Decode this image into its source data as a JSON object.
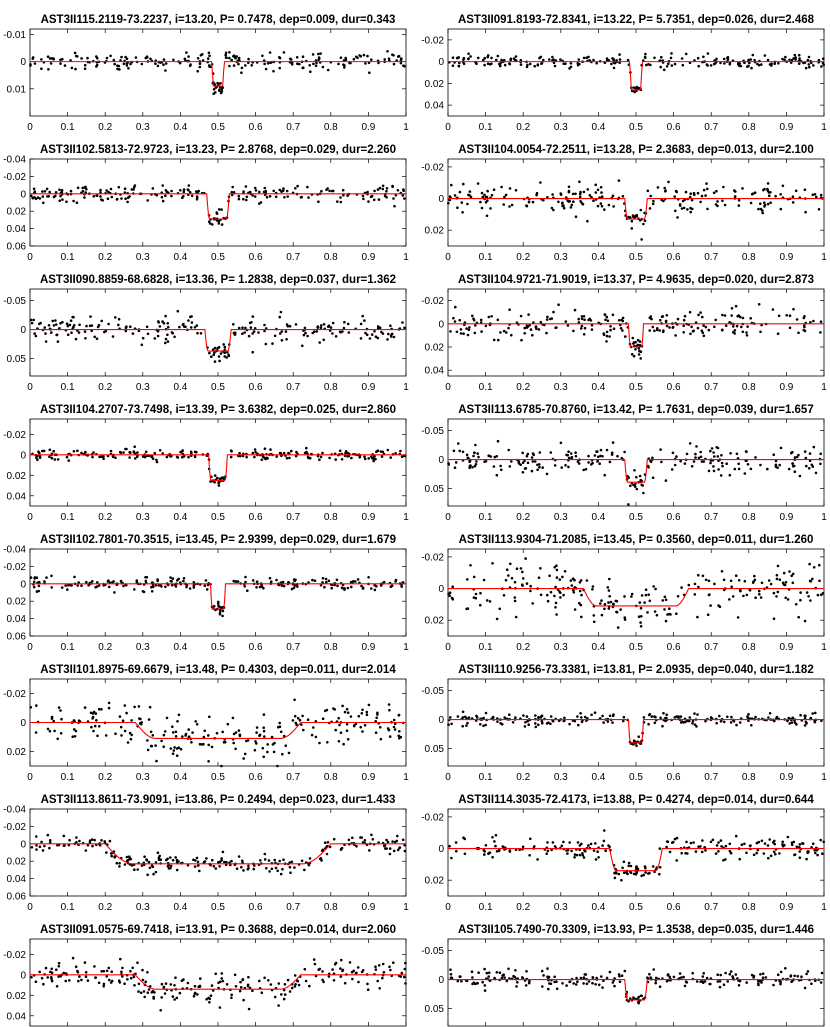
{
  "figure": {
    "x_ticks": [
      "0",
      "0.1",
      "0.2",
      "0.3",
      "0.4",
      "0.5",
      "0.6",
      "0.7",
      "0.8",
      "0.9",
      "1"
    ],
    "colors": {
      "model": "#ff0000",
      "points": "#000000"
    }
  },
  "chart_data": [
    {
      "type": "scatter",
      "title": "AST3II115.2119-73.2237, i=13.20, P= 0.7478, dep=0.009, dur=0.343",
      "xlim": [
        0,
        1
      ],
      "ylim": [
        0.02,
        -0.012
      ],
      "yticks": [
        "-0.01",
        "0",
        "0.01"
      ],
      "ytick_values": [
        -0.01,
        0,
        0.01
      ],
      "depth": 0.009,
      "transit_center": 0.5,
      "transit_width": 0.016,
      "noise": 0.0016,
      "seed": 11
    },
    {
      "type": "scatter",
      "title": "AST3II091.8193-72.8341, i=13.22, P= 5.7351, dep=0.026, dur=2.468",
      "xlim": [
        0,
        1
      ],
      "ylim": [
        0.05,
        -0.03
      ],
      "yticks": [
        "-0.02",
        "0",
        "0.02",
        "0.04"
      ],
      "ytick_values": [
        -0.02,
        0,
        0.02,
        0.04
      ],
      "depth": 0.026,
      "transit_center": 0.5,
      "transit_width": 0.016,
      "noise": 0.0028,
      "seed": 12
    },
    {
      "type": "scatter",
      "title": "AST3II102.5813-72.9723, i=13.23, P= 2.8768, dep=0.029, dur=2.260",
      "xlim": [
        0,
        1
      ],
      "ylim": [
        0.06,
        -0.04
      ],
      "yticks": [
        "-0.04",
        "-0.02",
        "0",
        "0.02",
        "0.04",
        "0.06"
      ],
      "ytick_values": [
        -0.04,
        -0.02,
        0,
        0.02,
        0.04,
        0.06
      ],
      "depth": 0.029,
      "transit_center": 0.5,
      "transit_width": 0.03,
      "noise": 0.005,
      "seed": 13
    },
    {
      "type": "scatter",
      "title": "AST3II104.0054-72.2511, i=13.28, P= 2.3683, dep=0.013, dur=2.100",
      "xlim": [
        0,
        1
      ],
      "ylim": [
        0.03,
        -0.025
      ],
      "yticks": [
        "-0.02",
        "0",
        "0.02"
      ],
      "ytick_values": [
        -0.02,
        0,
        0.02
      ],
      "depth": 0.013,
      "transit_center": 0.5,
      "transit_width": 0.03,
      "noise": 0.005,
      "seed": 14
    },
    {
      "type": "scatter",
      "title": "AST3II090.8859-68.6828, i=13.36, P= 1.2838, dep=0.037, dur=1.362",
      "xlim": [
        0,
        1
      ],
      "ylim": [
        0.08,
        -0.07
      ],
      "yticks": [
        "-0.05",
        "0",
        "0.05"
      ],
      "ytick_values": [
        -0.05,
        0,
        0.05
      ],
      "depth": 0.037,
      "transit_center": 0.5,
      "transit_width": 0.035,
      "noise": 0.011,
      "seed": 15
    },
    {
      "type": "scatter",
      "title": "AST3II104.9721-71.9019, i=13.37, P= 4.9635, dep=0.020, dur=2.873",
      "xlim": [
        0,
        1
      ],
      "ylim": [
        0.045,
        -0.03
      ],
      "yticks": [
        "-0.02",
        "0",
        "0.02",
        "0.04"
      ],
      "ytick_values": [
        -0.02,
        0,
        0.02,
        0.04
      ],
      "depth": 0.02,
      "transit_center": 0.5,
      "transit_width": 0.02,
      "noise": 0.006,
      "seed": 16
    },
    {
      "type": "scatter",
      "title": "AST3II104.2707-73.7498, i=13.39, P= 3.6382, dep=0.025, dur=2.860",
      "xlim": [
        0,
        1
      ],
      "ylim": [
        0.05,
        -0.035
      ],
      "yticks": [
        "-0.02",
        "0",
        "0.02",
        "0.04"
      ],
      "ytick_values": [
        -0.02,
        0,
        0.02,
        0.04
      ],
      "depth": 0.025,
      "transit_center": 0.5,
      "transit_width": 0.025,
      "noise": 0.0025,
      "seed": 17
    },
    {
      "type": "scatter",
      "title": "AST3II113.6785-70.8760, i=13.42, P= 1.7631, dep=0.039, dur=1.657",
      "xlim": [
        0,
        1
      ],
      "ylim": [
        0.08,
        -0.07
      ],
      "yticks": [
        "-0.05",
        "0",
        "0.05"
      ],
      "ytick_values": [
        -0.05,
        0,
        0.05
      ],
      "depth": 0.039,
      "transit_center": 0.5,
      "transit_width": 0.03,
      "noise": 0.012,
      "seed": 18
    },
    {
      "type": "scatter",
      "title": "AST3II102.7801-70.3515, i=13.45, P= 2.9399, dep=0.029, dur=1.679",
      "xlim": [
        0,
        1
      ],
      "ylim": [
        0.06,
        -0.04
      ],
      "yticks": [
        "-0.04",
        "-0.02",
        "0",
        "0.02",
        "0.04",
        "0.06"
      ],
      "ytick_values": [
        -0.04,
        -0.02,
        0,
        0.02,
        0.04,
        0.06
      ],
      "depth": 0.029,
      "transit_center": 0.5,
      "transit_width": 0.02,
      "noise": 0.0035,
      "seed": 19
    },
    {
      "type": "scatter",
      "title": "AST3II113.9304-71.2085, i=13.45, P= 0.3560, dep=0.011, dur=1.260",
      "xlim": [
        0,
        1
      ],
      "ylim": [
        0.03,
        -0.025
      ],
      "yticks": [
        "-0.02",
        "0",
        "0.02"
      ],
      "ytick_values": [
        -0.02,
        0,
        0.02
      ],
      "depth": 0.011,
      "transit_center": 0.5,
      "transit_width": 0.14,
      "noise": 0.007,
      "seed": 20
    },
    {
      "type": "scatter",
      "title": "AST3II101.8975-69.6679, i=13.48, P= 0.4303, dep=0.011, dur=2.014",
      "xlim": [
        0,
        1
      ],
      "ylim": [
        0.03,
        -0.03
      ],
      "yticks": [
        "-0.02",
        "0",
        "0.02"
      ],
      "ytick_values": [
        -0.02,
        0,
        0.02
      ],
      "depth": 0.011,
      "transit_center": 0.5,
      "transit_width": 0.22,
      "noise": 0.008,
      "seed": 21
    },
    {
      "type": "scatter",
      "title": "AST3II110.9256-73.3381, i=13.81, P= 2.0935, dep=0.040, dur=1.182",
      "xlim": [
        0,
        1
      ],
      "ylim": [
        0.08,
        -0.07
      ],
      "yticks": [
        "-0.05",
        "0",
        "0.05"
      ],
      "ytick_values": [
        -0.05,
        0,
        0.05
      ],
      "depth": 0.04,
      "transit_center": 0.5,
      "transit_width": 0.02,
      "noise": 0.005,
      "seed": 22
    },
    {
      "type": "scatter",
      "title": "AST3II113.8611-73.9091, i=13.86, P= 0.2494, dep=0.023, dur=1.433",
      "xlim": [
        0,
        1
      ],
      "ylim": [
        0.06,
        -0.04
      ],
      "yticks": [
        "-0.04",
        "-0.02",
        "0",
        "0.02",
        "0.04",
        "0.06"
      ],
      "ytick_values": [
        -0.04,
        -0.02,
        0,
        0.02,
        0.04,
        0.06
      ],
      "depth": 0.023,
      "transit_center": 0.5,
      "transit_width": 0.3,
      "noise": 0.005,
      "seed": 23
    },
    {
      "type": "scatter",
      "title": "AST3II114.3035-72.4173, i=13.88, P= 0.4274, dep=0.014, dur=0.644",
      "xlim": [
        0,
        1
      ],
      "ylim": [
        0.03,
        -0.025
      ],
      "yticks": [
        "-0.02",
        "0",
        "0.02"
      ],
      "ytick_values": [
        -0.02,
        0,
        0.02
      ],
      "depth": 0.014,
      "transit_center": 0.5,
      "transit_width": 0.07,
      "noise": 0.0035,
      "seed": 24
    },
    {
      "type": "scatter",
      "title": "AST3II091.0575-69.7418, i=13.91, P= 0.3688, dep=0.014, dur=2.060",
      "xlim": [
        0,
        1
      ],
      "ylim": [
        0.05,
        -0.035
      ],
      "yticks": [
        "-0.02",
        "0",
        "0.02",
        "0.04"
      ],
      "ytick_values": [
        -0.02,
        0,
        0.02,
        0.04
      ],
      "depth": 0.014,
      "transit_center": 0.5,
      "transit_width": 0.22,
      "noise": 0.007,
      "seed": 25
    },
    {
      "type": "scatter",
      "title": "AST3II105.7490-70.3309, i=13.93, P= 1.3538, dep=0.035, dur=1.446",
      "xlim": [
        0,
        1
      ],
      "ylim": [
        0.08,
        -0.07
      ],
      "yticks": [
        "-0.05",
        "0",
        "0.05"
      ],
      "ytick_values": [
        -0.05,
        0,
        0.05
      ],
      "depth": 0.035,
      "transit_center": 0.5,
      "transit_width": 0.03,
      "noise": 0.008,
      "seed": 26
    }
  ]
}
